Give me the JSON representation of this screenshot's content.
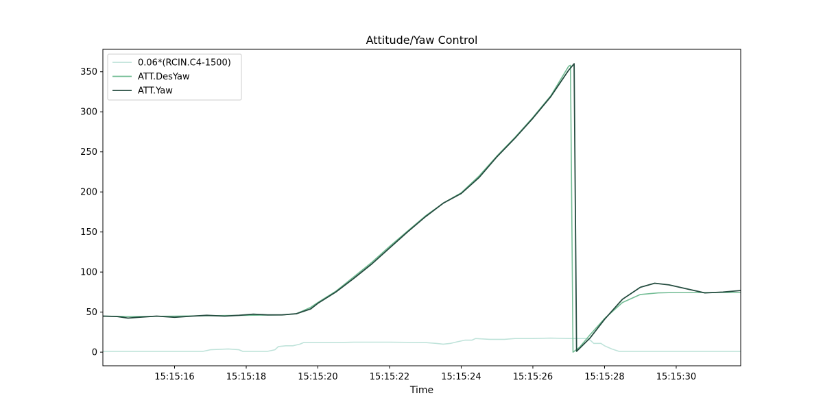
{
  "chart_data": {
    "type": "line",
    "title": "Attitude/Yaw Control",
    "xlabel": "Time",
    "ylabel": "",
    "x_unit": "seconds",
    "x_domain": [
      "15:15:14.0",
      "15:15:31.8"
    ],
    "xlim": [
      14.0,
      31.8
    ],
    "ylim": [
      -17,
      378
    ],
    "x_ticks": [
      16,
      18,
      20,
      22,
      24,
      26,
      28,
      30
    ],
    "x_tick_labels": [
      "15:15:16",
      "15:15:18",
      "15:15:20",
      "15:15:22",
      "15:15:24",
      "15:15:26",
      "15:15:28",
      "15:15:30"
    ],
    "y_ticks": [
      0,
      50,
      100,
      150,
      200,
      250,
      300,
      350
    ],
    "y_tick_labels": [
      "0",
      "50",
      "100",
      "150",
      "200",
      "250",
      "300",
      "350"
    ],
    "grid": false,
    "legend_position": "top-left",
    "series": [
      {
        "name": "0.06*(RCIN.C4-1500)",
        "color": "#bfe3da",
        "points": [
          [
            14.0,
            1
          ],
          [
            16.8,
            1
          ],
          [
            17.0,
            3
          ],
          [
            17.5,
            4
          ],
          [
            17.8,
            3
          ],
          [
            17.9,
            1
          ],
          [
            18.6,
            1
          ],
          [
            18.8,
            3
          ],
          [
            18.9,
            7
          ],
          [
            19.1,
            8
          ],
          [
            19.3,
            8
          ],
          [
            19.5,
            10
          ],
          [
            19.6,
            12
          ],
          [
            20.5,
            12
          ],
          [
            21.0,
            12.5
          ],
          [
            22.0,
            12.5
          ],
          [
            23.0,
            12
          ],
          [
            23.3,
            11
          ],
          [
            23.5,
            10
          ],
          [
            23.7,
            11
          ],
          [
            23.9,
            13
          ],
          [
            24.1,
            15
          ],
          [
            24.3,
            15
          ],
          [
            24.4,
            17
          ],
          [
            24.8,
            16
          ],
          [
            25.2,
            16
          ],
          [
            25.5,
            17
          ],
          [
            26.0,
            17
          ],
          [
            26.5,
            17.5
          ],
          [
            27.0,
            17
          ],
          [
            27.5,
            17
          ],
          [
            27.6,
            15
          ],
          [
            27.7,
            11
          ],
          [
            27.9,
            11
          ],
          [
            28.0,
            8
          ],
          [
            28.1,
            6
          ],
          [
            28.2,
            4
          ],
          [
            28.4,
            1
          ],
          [
            31.8,
            1
          ]
        ]
      },
      {
        "name": "ATT.DesYaw",
        "color": "#72bc94",
        "points": [
          [
            14.0,
            45
          ],
          [
            15.0,
            44.5
          ],
          [
            16.0,
            45
          ],
          [
            17.0,
            45.5
          ],
          [
            18.0,
            46
          ],
          [
            19.0,
            46.5
          ],
          [
            19.4,
            48
          ],
          [
            19.6,
            52
          ],
          [
            19.8,
            56
          ],
          [
            20.0,
            62
          ],
          [
            20.5,
            76
          ],
          [
            21.0,
            94
          ],
          [
            21.5,
            112
          ],
          [
            22.0,
            132
          ],
          [
            22.5,
            151
          ],
          [
            23.0,
            170
          ],
          [
            23.5,
            186
          ],
          [
            24.0,
            199
          ],
          [
            24.5,
            220
          ],
          [
            25.0,
            245
          ],
          [
            25.5,
            268
          ],
          [
            26.0,
            293
          ],
          [
            26.5,
            320
          ],
          [
            27.0,
            357
          ],
          [
            27.05,
            358
          ],
          [
            27.12,
            0
          ],
          [
            27.3,
            6
          ],
          [
            27.6,
            22
          ],
          [
            28.0,
            42
          ],
          [
            28.5,
            62
          ],
          [
            29.0,
            72
          ],
          [
            29.5,
            74
          ],
          [
            30.0,
            74.5
          ],
          [
            31.0,
            74.5
          ],
          [
            31.8,
            74.5
          ]
        ]
      },
      {
        "name": "ATT.Yaw",
        "color": "#244c3f",
        "points": [
          [
            14.0,
            45
          ],
          [
            14.4,
            44.5
          ],
          [
            14.7,
            42.5
          ],
          [
            15.0,
            43.5
          ],
          [
            15.5,
            45
          ],
          [
            16.0,
            43.5
          ],
          [
            16.5,
            45
          ],
          [
            16.9,
            46
          ],
          [
            17.4,
            45
          ],
          [
            17.8,
            46
          ],
          [
            18.2,
            47.5
          ],
          [
            18.6,
            46.5
          ],
          [
            19.0,
            46.5
          ],
          [
            19.4,
            48
          ],
          [
            19.8,
            54
          ],
          [
            20.0,
            61
          ],
          [
            20.5,
            75
          ],
          [
            21.0,
            92
          ],
          [
            21.5,
            110
          ],
          [
            22.0,
            130
          ],
          [
            22.5,
            150
          ],
          [
            23.0,
            169
          ],
          [
            23.5,
            186
          ],
          [
            24.0,
            198
          ],
          [
            24.5,
            218
          ],
          [
            25.0,
            244
          ],
          [
            25.5,
            267
          ],
          [
            26.0,
            292
          ],
          [
            26.5,
            319
          ],
          [
            27.0,
            352
          ],
          [
            27.15,
            360
          ],
          [
            27.22,
            1
          ],
          [
            27.6,
            18
          ],
          [
            28.0,
            41
          ],
          [
            28.5,
            66
          ],
          [
            29.0,
            81
          ],
          [
            29.4,
            86
          ],
          [
            29.8,
            84
          ],
          [
            30.3,
            79
          ],
          [
            30.8,
            74
          ],
          [
            31.3,
            75
          ],
          [
            31.8,
            77
          ]
        ]
      }
    ]
  }
}
